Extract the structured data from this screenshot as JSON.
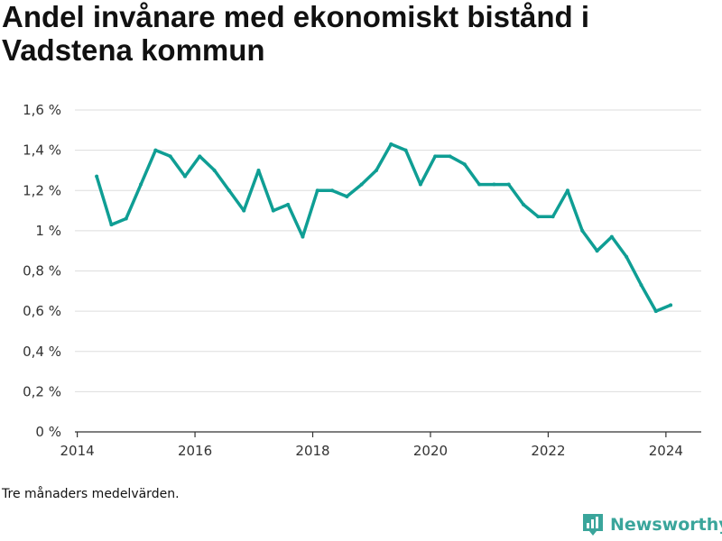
{
  "title": "Andel invånare med ekonomiskt bistånd i Vadstena kommun",
  "note": "Tre månaders medelvärden.",
  "brand": {
    "name": "Newsworthy",
    "color": "#3aa59b"
  },
  "chart_data": {
    "type": "line",
    "title": "Andel invånare med ekonomiskt bistånd i Vadstena kommun",
    "xlabel": "",
    "ylabel": "",
    "xlim": [
      2013.96,
      2024.6
    ],
    "ylim": [
      0,
      1.6
    ],
    "x_ticks": [
      2014,
      2016,
      2018,
      2020,
      2022,
      2024
    ],
    "y_ticks": [
      0,
      0.2,
      0.4,
      0.6,
      0.8,
      1.0,
      1.2,
      1.4,
      1.6
    ],
    "y_tick_labels": [
      "0 %",
      "0,2 %",
      "0,4 %",
      "0,6 %",
      "0,8 %",
      "1 %",
      "1,2 %",
      "1,4 %",
      "1,6 %"
    ],
    "grid": true,
    "line_color": "#0f9e94",
    "series": [
      {
        "name": "",
        "x": [
          2014.33,
          2014.58,
          2014.83,
          2015.08,
          2015.33,
          2015.58,
          2015.83,
          2016.08,
          2016.33,
          2016.58,
          2016.83,
          2017.08,
          2017.33,
          2017.58,
          2017.83,
          2018.08,
          2018.33,
          2018.58,
          2018.83,
          2019.08,
          2019.33,
          2019.58,
          2019.83,
          2020.08,
          2020.33,
          2020.58,
          2020.83,
          2021.08,
          2021.33,
          2021.58,
          2021.83,
          2022.08,
          2022.33,
          2022.58,
          2022.83,
          2023.08,
          2023.33,
          2023.58,
          2023.83,
          2024.08
        ],
        "y": [
          1.27,
          1.03,
          1.06,
          1.23,
          1.4,
          1.37,
          1.27,
          1.37,
          1.3,
          1.2,
          1.1,
          1.3,
          1.1,
          1.13,
          0.97,
          1.2,
          1.2,
          1.17,
          1.23,
          1.3,
          1.43,
          1.4,
          1.23,
          1.37,
          1.37,
          1.33,
          1.23,
          1.23,
          1.23,
          1.13,
          1.07,
          1.07,
          1.2,
          1.0,
          0.9,
          0.97,
          0.87,
          0.73,
          0.6,
          0.63
        ]
      }
    ]
  }
}
